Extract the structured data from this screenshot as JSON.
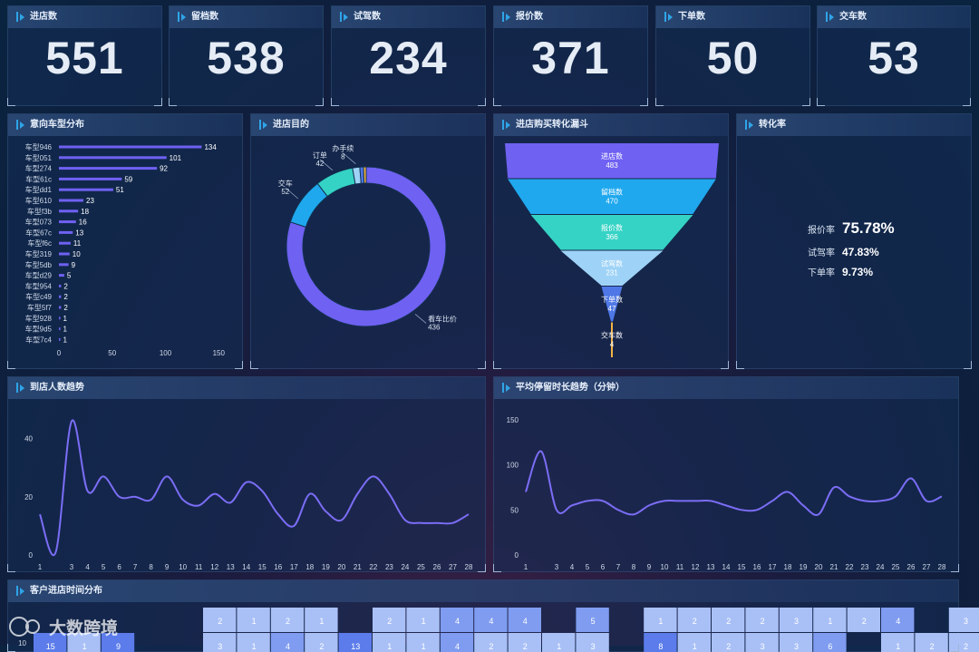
{
  "kpis": [
    {
      "label": "进店数",
      "value": "551"
    },
    {
      "label": "留档数",
      "value": "538"
    },
    {
      "label": "试驾数",
      "value": "234"
    },
    {
      "label": "报价数",
      "value": "371"
    },
    {
      "label": "下单数",
      "value": "50"
    },
    {
      "label": "交车数",
      "value": "53"
    }
  ],
  "panels": {
    "model": "意向车型分布",
    "purpose": "进店目的",
    "funnel": "进店购买转化漏斗",
    "rate": "转化率",
    "visitors": "到店人数趋势",
    "stay": "平均停留时长趋势（分钟）",
    "heat": "客户进店时间分布"
  },
  "rates": [
    {
      "label": "报价率",
      "value": "75.78%"
    },
    {
      "label": "试驾率",
      "value": "47.83%"
    },
    {
      "label": "下单率",
      "value": "9.73%"
    }
  ],
  "watermark": "大数跨境",
  "colors": {
    "accent": "#6f61f2",
    "cyan": "#2fa4e7",
    "teal": "#35d3c5",
    "light": "#9ed3f7",
    "blue": "#1fa8ee"
  },
  "chart_data": [
    {
      "type": "bar",
      "orientation": "horizontal",
      "title": "意向车型分布",
      "categories": [
        "车型946",
        "车型051",
        "车型274",
        "车型61c",
        "车型dd1",
        "车型610",
        "车型f3b",
        "车型073",
        "车型67c",
        "车型f6c",
        "车型319",
        "车型5db",
        "车型d29",
        "车型954",
        "车型c49",
        "车型5f7",
        "车型928",
        "车型9d5",
        "车型7c4"
      ],
      "values": [
        134,
        101,
        92,
        59,
        51,
        23,
        18,
        16,
        13,
        11,
        10,
        9,
        5,
        2,
        2,
        2,
        1,
        1,
        1
      ],
      "xticks": [
        0,
        50,
        100,
        150
      ],
      "xlim": [
        0,
        160
      ]
    },
    {
      "type": "pie",
      "donut": true,
      "title": "进店目的",
      "slices": [
        {
          "name": "看车比价",
          "value": 436,
          "color": "#6f61f2"
        },
        {
          "name": "交车",
          "value": 52,
          "color": "#1fa8ee"
        },
        {
          "name": "订单",
          "value": 42,
          "color": "#35d3c5"
        },
        {
          "name": "办手续",
          "value": 8,
          "color": "#9ed3f7"
        },
        {
          "name": "",
          "value": 4,
          "color": "#4f78e6"
        },
        {
          "name": "",
          "value": 3,
          "color": "#f5b342"
        }
      ]
    },
    {
      "type": "funnel",
      "title": "进店购买转化漏斗",
      "stages": [
        {
          "name": "进店数",
          "value": 483,
          "color": "#6f61f2"
        },
        {
          "name": "留档数",
          "value": 470,
          "color": "#1fa8ee"
        },
        {
          "name": "报价数",
          "value": 366,
          "color": "#35d3c5"
        },
        {
          "name": "试驾数",
          "value": 231,
          "color": "#9ed3f7"
        },
        {
          "name": "下单数",
          "value": 47,
          "color": "#4f78e6"
        },
        {
          "name": "交车数",
          "value": 4,
          "color": "#f5b342"
        }
      ]
    },
    {
      "type": "line",
      "title": "到店人数趋势",
      "x": [
        1,
        2,
        3,
        4,
        5,
        6,
        7,
        8,
        9,
        10,
        11,
        12,
        13,
        14,
        15,
        16,
        17,
        18,
        19,
        20,
        21,
        22,
        23,
        24,
        25,
        26,
        27,
        28
      ],
      "xticks": [
        1,
        3,
        4,
        5,
        6,
        7,
        8,
        9,
        10,
        11,
        12,
        13,
        14,
        15,
        16,
        17,
        18,
        19,
        20,
        21,
        22,
        23,
        24,
        25,
        26,
        27,
        28
      ],
      "values": [
        14,
        1,
        46,
        22,
        27,
        20,
        20,
        19,
        27,
        19,
        17,
        21,
        18,
        25,
        22,
        14,
        10,
        21,
        15,
        12,
        21,
        27,
        21,
        12,
        11,
        11,
        11,
        14
      ],
      "yticks": [
        0,
        20,
        40
      ],
      "ylim": [
        0,
        48
      ]
    },
    {
      "type": "line",
      "title": "平均停留时长趋势（分钟）",
      "x": [
        1,
        2,
        3,
        4,
        5,
        6,
        7,
        8,
        9,
        10,
        11,
        12,
        13,
        14,
        15,
        16,
        17,
        18,
        19,
        20,
        21,
        22,
        23,
        24,
        25,
        26,
        27,
        28
      ],
      "xticks": [
        1,
        3,
        4,
        5,
        6,
        7,
        8,
        9,
        10,
        11,
        12,
        13,
        14,
        15,
        16,
        17,
        18,
        19,
        20,
        21,
        22,
        23,
        24,
        25,
        26,
        27,
        28
      ],
      "values": [
        70,
        115,
        50,
        55,
        60,
        60,
        50,
        45,
        55,
        60,
        60,
        60,
        60,
        55,
        50,
        50,
        60,
        70,
        55,
        45,
        75,
        65,
        60,
        60,
        65,
        85,
        60,
        65
      ],
      "yticks": [
        0,
        50,
        100,
        150
      ],
      "ylim": [
        0,
        155
      ]
    },
    {
      "type": "heatmap",
      "title": "客户进店时间分布",
      "row_labels": [
        "",
        "10"
      ],
      "rows": [
        [
          "",
          "",
          "",
          "",
          "",
          "2",
          "1",
          "2",
          "1",
          "",
          "2",
          "1",
          "4",
          "4",
          "4",
          "",
          "5",
          "",
          "1",
          "2",
          "2",
          "2",
          "3",
          "1",
          "2",
          "4",
          "",
          "3"
        ],
        [
          "15",
          "1",
          "9",
          "",
          "",
          "3",
          "1",
          "4",
          "2",
          "13",
          "1",
          "1",
          "4",
          "2",
          "2",
          "1",
          "3",
          "",
          "8",
          "1",
          "2",
          "3",
          "3",
          "6",
          "",
          "1",
          "2",
          "2"
        ]
      ]
    }
  ]
}
